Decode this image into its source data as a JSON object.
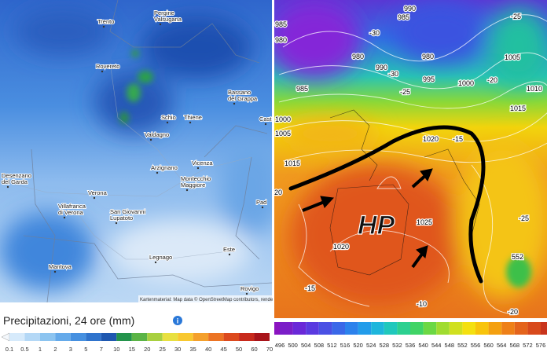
{
  "left_map": {
    "places": [
      {
        "lines": [
          "Trento"
        ]
      },
      {
        "lines": [
          "Pergine",
          "Valsugana"
        ]
      },
      {
        "lines": [
          "Rovereto"
        ]
      },
      {
        "lines": [
          "Bassano",
          "del Grappa"
        ]
      },
      {
        "lines": [
          "Schio"
        ]
      },
      {
        "lines": [
          "Thiene"
        ]
      },
      {
        "lines": [
          "Valdagno"
        ]
      },
      {
        "lines": [
          "Arzignano"
        ]
      },
      {
        "lines": [
          "Vicenza"
        ]
      },
      {
        "lines": [
          "Montecchio",
          "Maggiore"
        ]
      },
      {
        "lines": [
          "Desenzano",
          "del Garda"
        ]
      },
      {
        "lines": [
          "Verona"
        ]
      },
      {
        "lines": [
          "Villafranca",
          "di Verona"
        ]
      },
      {
        "lines": [
          "San Giovanni",
          "Lupatoto"
        ]
      },
      {
        "lines": [
          "Mantova"
        ]
      },
      {
        "lines": [
          "Legnago"
        ]
      },
      {
        "lines": [
          "Este"
        ]
      },
      {
        "lines": [
          "Rovigo"
        ]
      },
      {
        "lines": [
          "Cast"
        ]
      },
      {
        "lines": [
          "Pad"
        ]
      }
    ],
    "attribution": "Kartenmaterial: Map data © OpenStreetMap contributors, rende",
    "legend": {
      "title": "Precipitazioni, 24 ore (mm)",
      "info": "i",
      "labels": [
        "0.1",
        "0.5",
        "1",
        "2",
        "3",
        "5",
        "7",
        "10",
        "15",
        "20",
        "25",
        "30",
        "35",
        "40",
        "45",
        "50",
        "60",
        "70"
      ],
      "colors": [
        "#d6eafb",
        "#b4d8f6",
        "#8cc4f0",
        "#65aaea",
        "#4690e0",
        "#2f73cc",
        "#1f58b0",
        "#24944c",
        "#5bb446",
        "#a8d040",
        "#e8e040",
        "#f8c830",
        "#f4a02c",
        "#ec7424",
        "#dc4a1e",
        "#c82a1c",
        "#a8141a"
      ]
    }
  },
  "right_map": {
    "labels": [
      "990",
      "985",
      "-25",
      "985",
      "980",
      "-30",
      "980",
      "980",
      "1005",
      "990",
      "-30",
      "995",
      "1000",
      "-20",
      "985",
      "-25",
      "1010",
      "1015",
      "1000",
      "1005",
      "1020",
      "-15",
      "1015",
      "20",
      "1025",
      "-25",
      "1020",
      "552",
      "-15",
      "-10",
      "-20"
    ],
    "hp": "HP",
    "legend": {
      "labels": [
        "496",
        "500",
        "504",
        "508",
        "512",
        "516",
        "520",
        "524",
        "528",
        "532",
        "536",
        "540",
        "544",
        "548",
        "552",
        "556",
        "560",
        "564",
        "568",
        "572",
        "576"
      ],
      "colors": [
        "#7a1ec8",
        "#6a28d8",
        "#5a3ae0",
        "#4a50e4",
        "#3a68e8",
        "#2c82ec",
        "#229cea",
        "#1eb6dc",
        "#20c8bc",
        "#2cd090",
        "#40d466",
        "#6cd844",
        "#a0dc30",
        "#d0e020",
        "#f4e010",
        "#f8c40c",
        "#f4a010",
        "#ee8018",
        "#e4641c",
        "#d84a1c",
        "#c8341c"
      ]
    }
  }
}
